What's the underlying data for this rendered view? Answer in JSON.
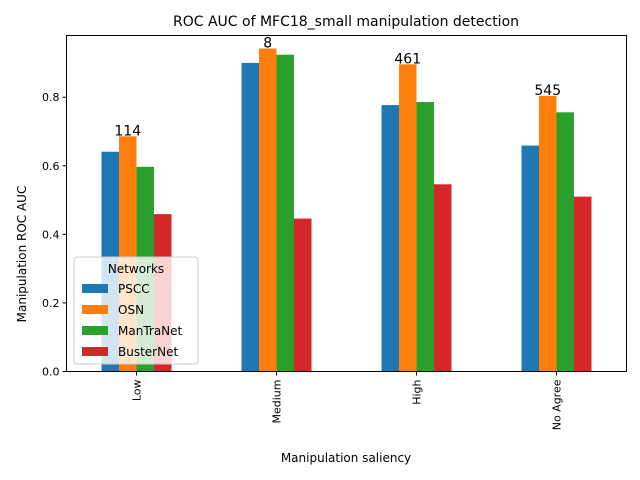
{
  "chart_data": {
    "type": "bar",
    "title": "ROC AUC of MFC18_small manipulation detection",
    "xlabel": "Manipulation saliency",
    "ylabel": "Manipulation ROC AUC",
    "categories": [
      "Low",
      "Medium",
      "High",
      "No Agree"
    ],
    "ylim": [
      0.0,
      0.98
    ],
    "yticks": [
      "0.0",
      "0.2",
      "0.4",
      "0.6",
      "0.8"
    ],
    "series": [
      {
        "name": "PSCC",
        "color": "#1f77b4",
        "values": [
          0.641,
          0.9,
          0.777,
          0.659
        ]
      },
      {
        "name": "OSN",
        "color": "#ff7f0e",
        "values": [
          0.686,
          0.942,
          0.896,
          0.804
        ]
      },
      {
        "name": "ManTraNet",
        "color": "#2ca02c",
        "values": [
          0.597,
          0.924,
          0.786,
          0.756
        ]
      },
      {
        "name": "BusterNet",
        "color": "#d62728",
        "values": [
          0.459,
          0.446,
          0.546,
          0.51
        ]
      }
    ],
    "annotations": [
      "114",
      "8",
      "461",
      "545"
    ],
    "legend": {
      "title": "Networks",
      "position": "lower-left"
    },
    "grid": false
  }
}
